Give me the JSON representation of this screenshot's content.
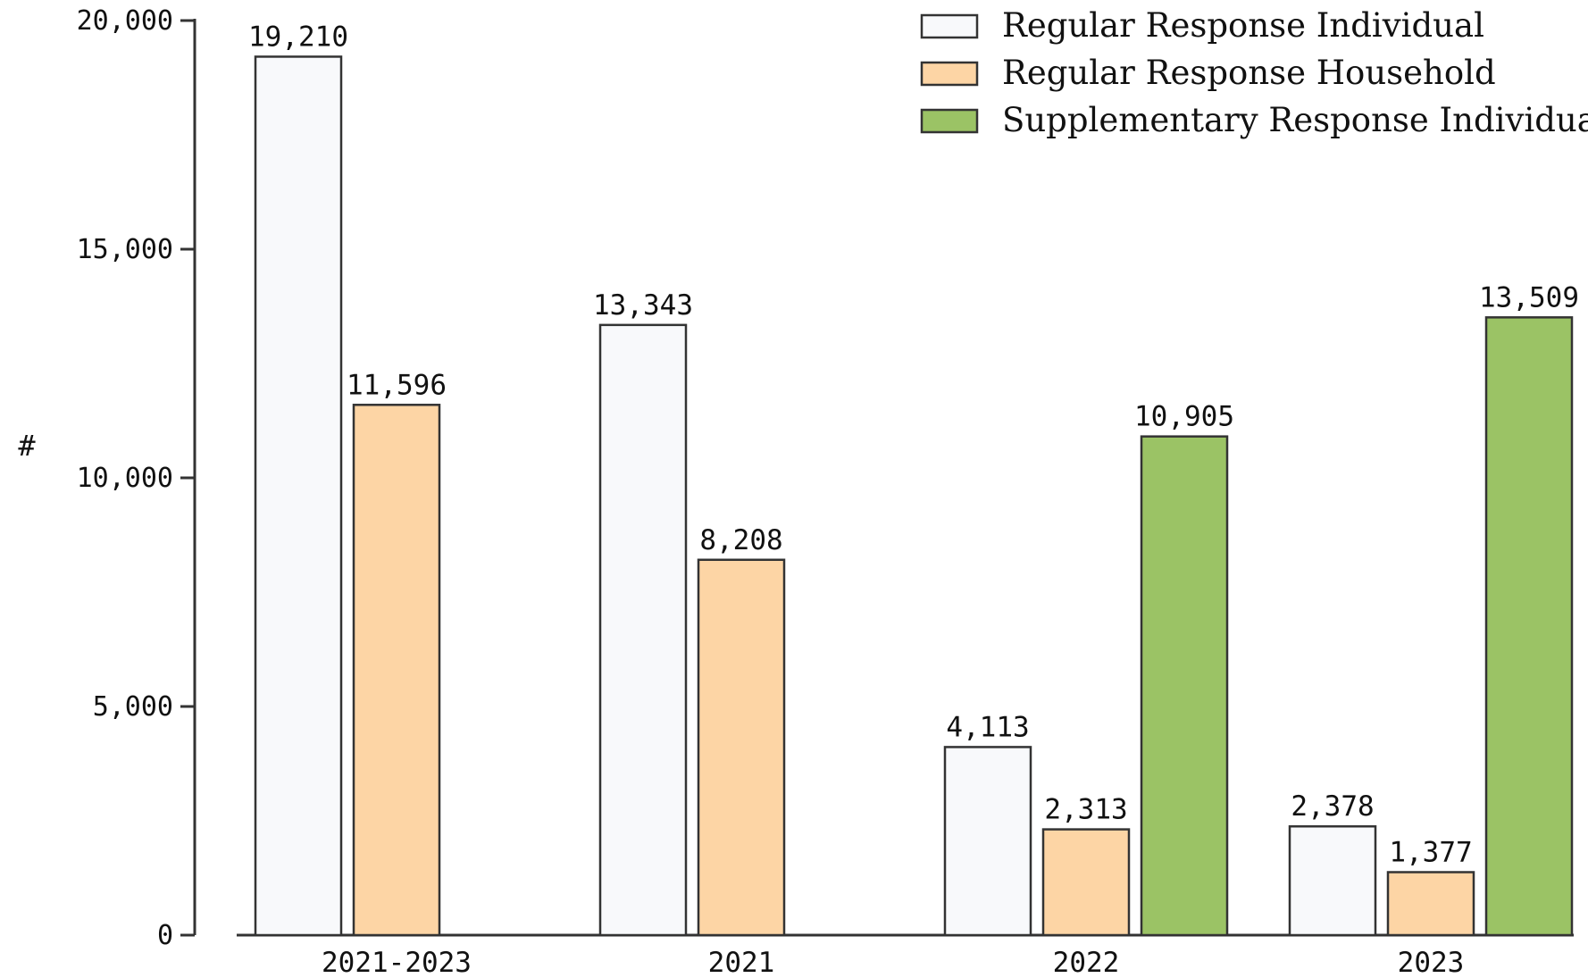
{
  "chart_data": {
    "type": "bar",
    "title": "",
    "xlabel": "",
    "ylabel": "#",
    "ylim": [
      0,
      20000
    ],
    "yticks": [
      0,
      5000,
      10000,
      15000,
      20000
    ],
    "ytick_labels": [
      "0",
      "5,000",
      "10,000",
      "15,000",
      "20,000"
    ],
    "grid": false,
    "legend_position": "top-right",
    "categories": [
      "2021-2023",
      "2021",
      "2022",
      "2023"
    ],
    "series": [
      {
        "name": "Regular Response Individual",
        "color": "#f8f9fb",
        "values": [
          19210,
          13343,
          4113,
          2378
        ],
        "labels": [
          "19,210",
          "13,343",
          "4,113",
          "2,378"
        ]
      },
      {
        "name": "Regular Response Household",
        "color": "#fdd5a5",
        "values": [
          11596,
          8208,
          2313,
          1377
        ],
        "labels": [
          "11,596",
          "8,208",
          "2,313",
          "1,377"
        ]
      },
      {
        "name": "Supplementary Response Individual",
        "color": "#9bc365",
        "values": [
          null,
          null,
          10905,
          13509
        ],
        "labels": [
          null,
          null,
          "10,905",
          "13,509"
        ]
      }
    ]
  }
}
